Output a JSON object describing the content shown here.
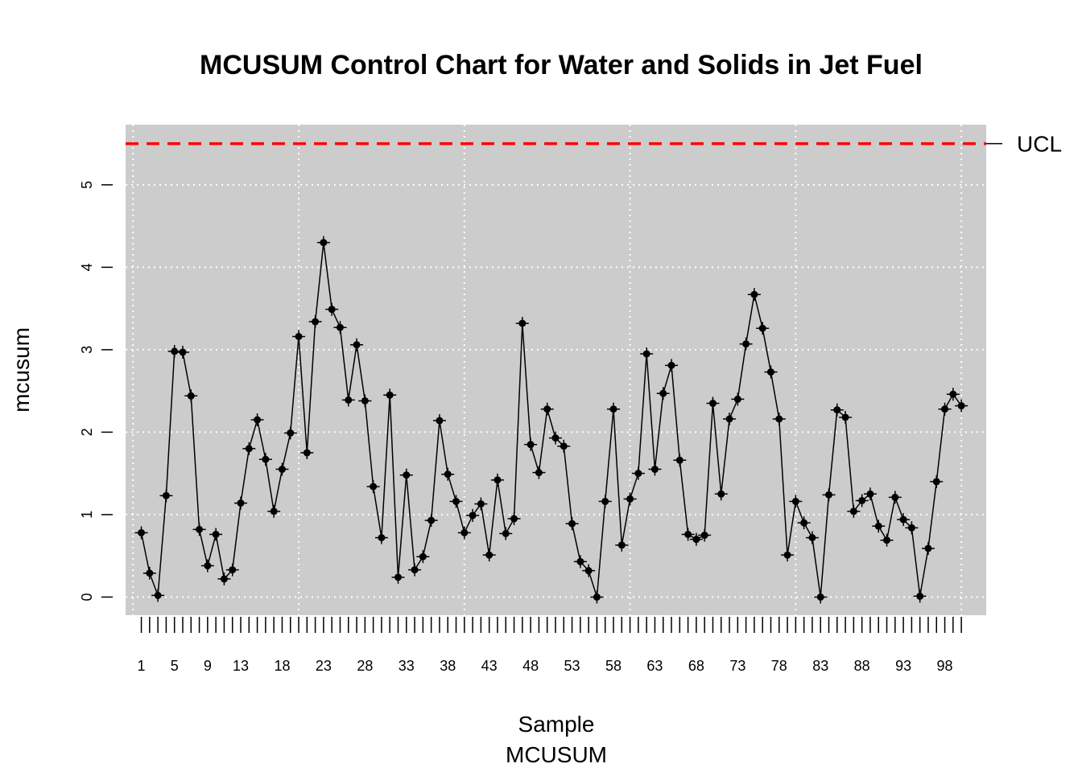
{
  "chart_data": {
    "type": "line",
    "title": "MCUSUM Control Chart for Water and Solids in Jet Fuel",
    "xlabel": "Sample",
    "subtitle": "MCUSUM",
    "ylabel": "mcusum",
    "x": [
      1,
      2,
      3,
      4,
      5,
      6,
      7,
      8,
      9,
      10,
      11,
      12,
      13,
      14,
      15,
      16,
      17,
      18,
      19,
      20,
      21,
      22,
      23,
      24,
      25,
      26,
      27,
      28,
      29,
      30,
      31,
      32,
      33,
      34,
      35,
      36,
      37,
      38,
      39,
      40,
      41,
      42,
      43,
      44,
      45,
      46,
      47,
      48,
      49,
      50,
      51,
      52,
      53,
      54,
      55,
      56,
      57,
      58,
      59,
      60,
      61,
      62,
      63,
      64,
      65,
      66,
      67,
      68,
      69,
      70,
      71,
      72,
      73,
      74,
      75,
      76,
      77,
      78,
      79,
      80,
      81,
      82,
      83,
      84,
      85,
      86,
      87,
      88,
      89,
      90,
      91,
      92,
      93,
      94,
      95,
      96,
      97,
      98,
      99,
      100
    ],
    "values": [
      0.78,
      0.29,
      0.02,
      1.23,
      2.98,
      2.97,
      2.44,
      0.82,
      0.38,
      0.76,
      0.22,
      0.33,
      1.14,
      1.8,
      2.15,
      1.67,
      1.04,
      1.55,
      1.99,
      3.16,
      1.75,
      3.34,
      4.3,
      3.49,
      3.27,
      2.39,
      3.06,
      2.38,
      1.34,
      0.72,
      2.45,
      0.24,
      1.48,
      0.33,
      0.49,
      0.93,
      2.14,
      1.49,
      1.16,
      0.78,
      0.99,
      1.13,
      0.51,
      1.42,
      0.77,
      0.95,
      3.32,
      1.85,
      1.51,
      2.28,
      1.93,
      1.83,
      0.89,
      0.43,
      0.32,
      0.0,
      1.16,
      2.28,
      0.63,
      1.19,
      1.5,
      2.95,
      1.55,
      2.47,
      2.81,
      1.66,
      0.76,
      0.7,
      0.75,
      2.35,
      1.25,
      2.16,
      2.4,
      3.07,
      3.67,
      3.26,
      2.73,
      2.16,
      0.51,
      1.16,
      0.9,
      0.72,
      0.0,
      1.24,
      2.27,
      2.18,
      1.04,
      1.17,
      1.25,
      0.86,
      0.69,
      1.21,
      0.94,
      0.84,
      0.01,
      0.59,
      1.4,
      2.28,
      2.46,
      2.32
    ],
    "xtick_labels": [
      "1",
      "5",
      "9",
      "13",
      "18",
      "23",
      "28",
      "33",
      "38",
      "43",
      "48",
      "53",
      "58",
      "63",
      "68",
      "73",
      "78",
      "83",
      "88",
      "93",
      "98"
    ],
    "xtick_positions": [
      1,
      5,
      9,
      13,
      18,
      23,
      28,
      33,
      38,
      43,
      48,
      53,
      58,
      63,
      68,
      73,
      78,
      83,
      88,
      93,
      98
    ],
    "yticks": [
      0,
      1,
      2,
      3,
      4,
      5
    ],
    "ylim": [
      -0.22,
      5.73
    ],
    "xlim": [
      -0.9,
      103
    ],
    "ucl": 5.5,
    "ucl_label": "UCL",
    "grid": true,
    "colors": {
      "panel": "#cccccc",
      "grid": "#ffffff",
      "line": "#000000",
      "ucl": "#ff0000"
    }
  }
}
